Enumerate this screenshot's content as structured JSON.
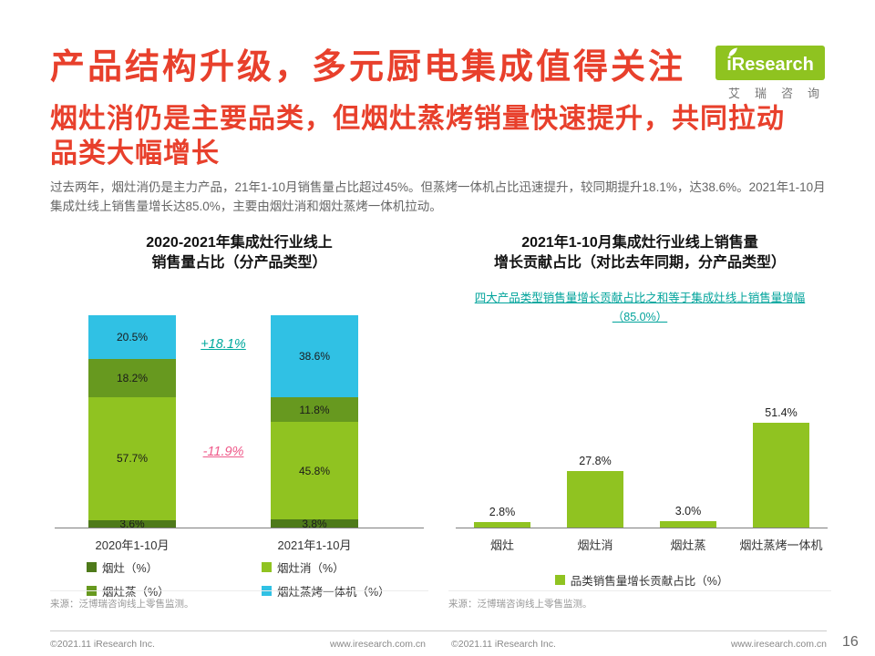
{
  "header": {
    "title": "产品结构升级，多元厨电集成值得关注",
    "subtitle_line1": "烟灶消仍是主要品类，但烟灶蒸烤销量快速提升，共同拉动",
    "subtitle_line2": "品类大幅增长",
    "body": "过去两年，烟灶消仍是主力产品，21年1-10月销售量占比超过45%。但蒸烤一体机占比迅速提升，较同期提升18.1%，达38.6%。2021年1-10月集成灶线上销售量增长达85.0%，主要由烟灶消和烟灶蒸烤一体机拉动。",
    "accent_color": "#E8402C"
  },
  "logo": {
    "brand": "iResearch",
    "brand_cn": "艾瑞咨询",
    "green": "#8FC320"
  },
  "chart_data": [
    {
      "type": "bar",
      "variant": "stacked-100",
      "title_line1": "2020-2021年集成灶行业线上",
      "title_line2": "销售量占比（分产品类型）",
      "categories": [
        "2020年1-10月",
        "2021年1-10月"
      ],
      "series": [
        {
          "name": "烟灶（%）",
          "color": "#4E7A1A",
          "values": [
            3.6,
            3.8
          ],
          "labels": [
            "3.6%",
            "3.8%"
          ]
        },
        {
          "name": "烟灶消（%）",
          "color": "#90C321",
          "values": [
            57.7,
            45.8
          ],
          "labels": [
            "57.7%",
            "45.8%"
          ]
        },
        {
          "name": "烟灶蒸（%）",
          "color": "#67991F",
          "values": [
            18.2,
            11.8
          ],
          "labels": [
            "18.2%",
            "11.8%"
          ]
        },
        {
          "name": "烟灶蒸烤一体机（%）",
          "color": "#30C1E4",
          "values": [
            20.5,
            38.6
          ],
          "labels": [
            "20.5%",
            "38.6%"
          ]
        }
      ],
      "annotations": [
        {
          "text": "+18.1%",
          "color": "#00A99D"
        },
        {
          "text": "-11.9%",
          "color": "#EF5A8A"
        }
      ],
      "ylim": [
        0,
        100
      ],
      "grid": false,
      "legend_position": "bottom"
    },
    {
      "type": "bar",
      "title_line1": "2021年1-10月集成灶行业线上销售量",
      "title_line2": "增长贡献占比（对比去年同期，分产品类型）",
      "note_line1": "四大产品类型销售量增长贡献占比之和等于集成灶线上销售量增幅",
      "note_line2": "（85.0%）",
      "categories": [
        "烟灶",
        "烟灶消",
        "烟灶蒸",
        "烟灶蒸烤一体机"
      ],
      "values": [
        2.8,
        27.8,
        3.0,
        51.4
      ],
      "labels": [
        "2.8%",
        "27.8%",
        "3.0%",
        "51.4%"
      ],
      "bar_color": "#90C321",
      "legend": "品类销售量增长贡献占比（%）",
      "ylim": [
        0,
        60
      ],
      "grid": false,
      "legend_position": "bottom"
    }
  ],
  "footer": {
    "source_left": "来源：泛博瑞咨询线上零售监测。",
    "source_right": "来源：泛博瑞咨询线上零售监测。",
    "copyright": "©2021.11 iResearch Inc.",
    "website": "www.iresearch.com.cn",
    "page_number": "16"
  }
}
